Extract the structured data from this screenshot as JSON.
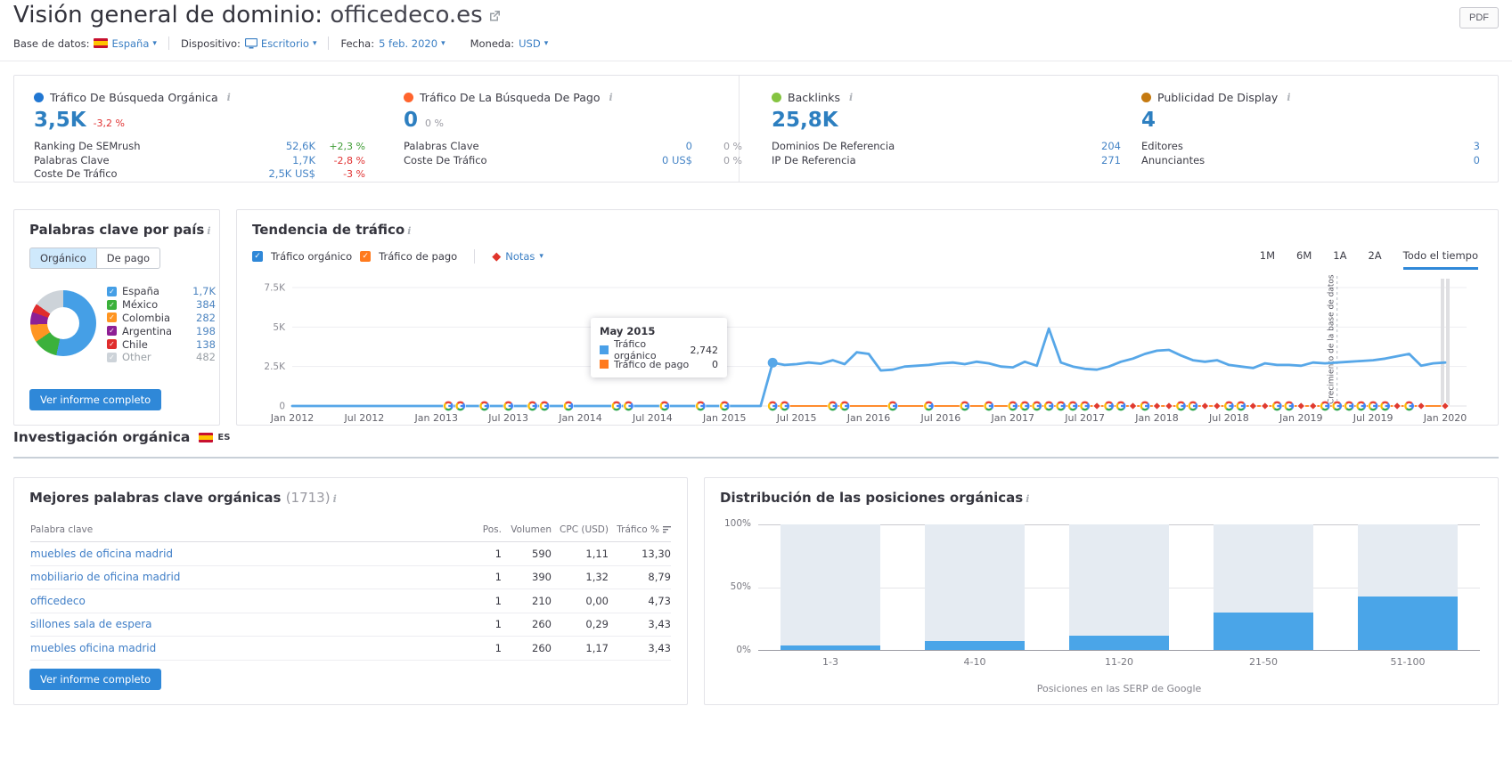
{
  "header": {
    "title_prefix": "Visión general de dominio: ",
    "domain": "officedeco.es",
    "pdf_button": "PDF"
  },
  "filters": {
    "database_label": "Base de datos:",
    "database_value": "España",
    "device_label": "Dispositivo:",
    "device_value": "Escritorio",
    "date_label": "Fecha:",
    "date_value": "5 feb. 2020",
    "currency_label": "Moneda:",
    "currency_value": "USD"
  },
  "metrics": {
    "organic": {
      "title": "Tráfico De Búsqueda Orgánica",
      "dot_color": "#2177d2",
      "value": "3,5K",
      "change": "-3,2 %",
      "rows": [
        {
          "label": "Ranking De SEMrush",
          "value": "52,6K",
          "pct": "+2,3 %"
        },
        {
          "label": "Palabras Clave",
          "value": "1,7K",
          "pct": "-2,8 %"
        },
        {
          "label": "Coste De Tráfico",
          "value": "2,5K US$",
          "pct": "-3 %"
        }
      ]
    },
    "paid": {
      "title": "Tráfico De La Búsqueda De Pago",
      "dot_color": "#ff642d",
      "value": "0",
      "change": "0 %",
      "rows": [
        {
          "label": "Palabras Clave",
          "value": "0",
          "pct": "0 %"
        },
        {
          "label": "Coste De Tráfico",
          "value": "0 US$",
          "pct": "0 %"
        }
      ]
    },
    "backlinks": {
      "title": "Backlinks",
      "dot_color": "#85c441",
      "value": "25,8K",
      "rows": [
        {
          "label": "Dominios De Referencia",
          "value": "204"
        },
        {
          "label": "IP De Referencia",
          "value": "271"
        }
      ]
    },
    "display": {
      "title": "Publicidad De Display",
      "dot_color": "#c57a11",
      "value": "4",
      "rows": [
        {
          "label": "Editores",
          "value": "3"
        },
        {
          "label": "Anunciantes",
          "value": "0"
        }
      ]
    }
  },
  "countries_panel": {
    "title": "Palabras clave por país",
    "tabs": [
      "Orgánico",
      "De pago"
    ],
    "button": "Ver informe completo",
    "chart_data": {
      "type": "donut",
      "items": [
        {
          "label": "España",
          "value": "1,7K",
          "value_num": 1700,
          "color": "#459fe6"
        },
        {
          "label": "México",
          "value": "384",
          "value_num": 384,
          "color": "#3bb13b"
        },
        {
          "label": "Colombia",
          "value": "282",
          "value_num": 282,
          "color": "#ff9522"
        },
        {
          "label": "Argentina",
          "value": "198",
          "value_num": 198,
          "color": "#8e1f95"
        },
        {
          "label": "Chile",
          "value": "138",
          "value_num": 138,
          "color": "#e02d2d"
        },
        {
          "label": "Other",
          "value": "482",
          "value_num": 482,
          "color": "#cdd3d9",
          "mod": "muted"
        }
      ]
    }
  },
  "trend_panel": {
    "title": "Tendencia de tráfico",
    "legend": {
      "organic": "Tráfico orgánico",
      "paid": "Tráfico de pago",
      "notes": "Notas"
    },
    "ranges": [
      "1M",
      "6M",
      "1A",
      "2A",
      "Todo el tiempo"
    ],
    "tooltip": {
      "title": "May 2015",
      "organic_label": "Tráfico orgánico",
      "organic_value": "2,742",
      "paid_label": "Tráfico de pago",
      "paid_value": "0"
    },
    "db_note": "Crecimiento de la base de datos",
    "chart_data": {
      "type": "line",
      "y_ticks": [
        "7.5K",
        "5K",
        "2.5K",
        "0"
      ],
      "y_tick_values": [
        7500,
        5000,
        2500,
        0
      ],
      "y_max": 7500,
      "x_ticks": [
        "Jan 2012",
        "Jul 2012",
        "Jan 2013",
        "Jul 2013",
        "Jan 2014",
        "Jul 2014",
        "Jan 2015",
        "Jul 2015",
        "Jan 2016",
        "Jul 2016",
        "Jan 2017",
        "Jul 2017",
        "Jan 2018",
        "Jul 2018",
        "Jan 2019",
        "Jul 2019",
        "Jan 2020"
      ],
      "months_per_tick": 6,
      "series": [
        {
          "name": "Tráfico orgánico",
          "color": "#57a7e8",
          "monthly": [
            0,
            0,
            0,
            0,
            0,
            0,
            0,
            0,
            0,
            0,
            0,
            0,
            0,
            0,
            0,
            0,
            0,
            0,
            0,
            0,
            0,
            0,
            0,
            0,
            0,
            0,
            0,
            0,
            0,
            0,
            0,
            0,
            0,
            0,
            0,
            0,
            0,
            0,
            0,
            0,
            2742,
            2600,
            2650,
            2750,
            2680,
            2900,
            2650,
            3400,
            3300,
            2250,
            2300,
            2500,
            2550,
            2600,
            2700,
            2750,
            2650,
            2800,
            2700,
            2500,
            2450,
            2800,
            2550,
            4900,
            2750,
            2500,
            2350,
            2300,
            2500,
            2800,
            3000,
            3300,
            3500,
            3550,
            3200,
            2900,
            2800,
            2900,
            2600,
            2500,
            2400,
            2700,
            2600,
            2600,
            2550,
            2750,
            2700,
            2750,
            2800,
            2850,
            2900,
            3000,
            3150,
            3300,
            2550,
            2700,
            2750
          ]
        },
        {
          "name": "Tráfico de pago",
          "color": "#ff8c2e",
          "start_month": 40,
          "value": 0
        }
      ],
      "highlight": {
        "month": 40,
        "value": 2742
      },
      "markers": [
        {
          "m": 13,
          "t": "g"
        },
        {
          "m": 14,
          "t": "g"
        },
        {
          "m": 16,
          "t": "g"
        },
        {
          "m": 18,
          "t": "g"
        },
        {
          "m": 20,
          "t": "g"
        },
        {
          "m": 21,
          "t": "g"
        },
        {
          "m": 23,
          "t": "g"
        },
        {
          "m": 27,
          "t": "g"
        },
        {
          "m": 28,
          "t": "g"
        },
        {
          "m": 31,
          "t": "g"
        },
        {
          "m": 34,
          "t": "g"
        },
        {
          "m": 36,
          "t": "g"
        },
        {
          "m": 40,
          "t": "g"
        },
        {
          "m": 41,
          "t": "g"
        },
        {
          "m": 45,
          "t": "g"
        },
        {
          "m": 46,
          "t": "g"
        },
        {
          "m": 50,
          "t": "g"
        },
        {
          "m": 53,
          "t": "g"
        },
        {
          "m": 56,
          "t": "g"
        },
        {
          "m": 58,
          "t": "g"
        },
        {
          "m": 60,
          "t": "g"
        },
        {
          "m": 61,
          "t": "g"
        },
        {
          "m": 62,
          "t": "g"
        },
        {
          "m": 63,
          "t": "g"
        },
        {
          "m": 64,
          "t": "g"
        },
        {
          "m": 65,
          "t": "g"
        },
        {
          "m": 66,
          "t": "g"
        },
        {
          "m": 67,
          "t": "n"
        },
        {
          "m": 68,
          "t": "g"
        },
        {
          "m": 69,
          "t": "g"
        },
        {
          "m": 70,
          "t": "n"
        },
        {
          "m": 71,
          "t": "g"
        },
        {
          "m": 72,
          "t": "n"
        },
        {
          "m": 73,
          "t": "n"
        },
        {
          "m": 74,
          "t": "g"
        },
        {
          "m": 75,
          "t": "g"
        },
        {
          "m": 76,
          "t": "n"
        },
        {
          "m": 77,
          "t": "n"
        },
        {
          "m": 78,
          "t": "g"
        },
        {
          "m": 79,
          "t": "g"
        },
        {
          "m": 80,
          "t": "n"
        },
        {
          "m": 81,
          "t": "n"
        },
        {
          "m": 82,
          "t": "g"
        },
        {
          "m": 83,
          "t": "g"
        },
        {
          "m": 84,
          "t": "n"
        },
        {
          "m": 85,
          "t": "n"
        },
        {
          "m": 86,
          "t": "g"
        },
        {
          "m": 87,
          "t": "g"
        },
        {
          "m": 88,
          "t": "g"
        },
        {
          "m": 89,
          "t": "g"
        },
        {
          "m": 90,
          "t": "g"
        },
        {
          "m": 91,
          "t": "g"
        },
        {
          "m": 92,
          "t": "n"
        },
        {
          "m": 93,
          "t": "g"
        },
        {
          "m": 94,
          "t": "n"
        },
        {
          "m": 96,
          "t": "n"
        }
      ],
      "db_growth_month": 87,
      "current_band_month": 96
    }
  },
  "research_section": {
    "title": "Investigación orgánica",
    "flag": "ES"
  },
  "keywords_panel": {
    "title": "Mejores palabras clave orgánicas",
    "count": "(1713)",
    "columns": [
      "Palabra clave",
      "Pos.",
      "Volumen",
      "CPC (USD)",
      "Tráfico %"
    ],
    "rows": [
      {
        "keyword": "muebles de oficina madrid",
        "pos": "1",
        "volume": "590",
        "cpc": "1,11",
        "traffic": "13,30"
      },
      {
        "keyword": "mobiliario de oficina madrid",
        "pos": "1",
        "volume": "390",
        "cpc": "1,32",
        "traffic": "8,79"
      },
      {
        "keyword": "officedeco",
        "pos": "1",
        "volume": "210",
        "cpc": "0,00",
        "traffic": "4,73"
      },
      {
        "keyword": "sillones sala de espera",
        "pos": "1",
        "volume": "260",
        "cpc": "0,29",
        "traffic": "3,43"
      },
      {
        "keyword": "muebles oficina madrid",
        "pos": "1",
        "volume": "260",
        "cpc": "1,17",
        "traffic": "3,43"
      }
    ],
    "button": "Ver informe completo"
  },
  "positions_panel": {
    "title": "Distribución de las posiciones orgánicas",
    "xlabel": "Posiciones en las SERP de Google",
    "chart_data": {
      "type": "bar",
      "categories": [
        "1-3",
        "4-10",
        "11-20",
        "21-50",
        "51-100"
      ],
      "values": [
        4,
        8,
        12,
        30,
        43
      ],
      "y_ticks": [
        "100%",
        "50%",
        "0%"
      ],
      "ylim": [
        0,
        100
      ],
      "bar_color": "#4aa5e8",
      "track_color": "#e5ebf2"
    }
  }
}
